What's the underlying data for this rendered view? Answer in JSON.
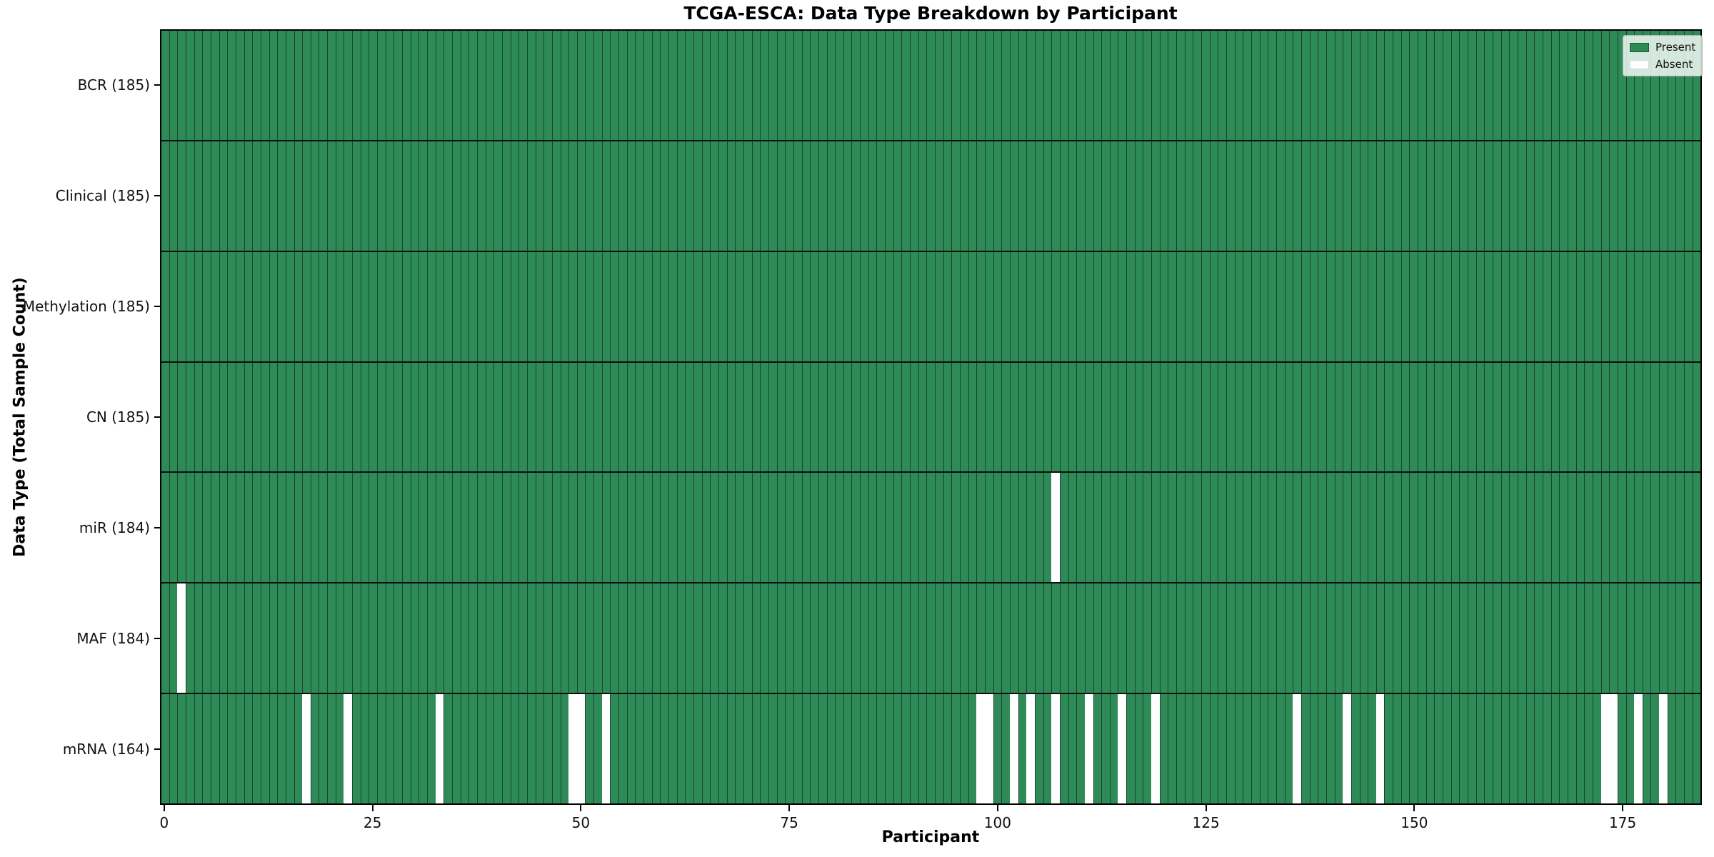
{
  "figure": {
    "title": "TCGA-ESCA: Data Type Breakdown by Participant",
    "xlabel": "Participant",
    "ylabel": "Data Type (Total Sample Count)"
  },
  "legend": {
    "position": "upper right",
    "items": [
      {
        "label": "Present",
        "color": "#2e8b57"
      },
      {
        "label": "Absent",
        "color": "#ffffff"
      }
    ]
  },
  "colors": {
    "present": "#2e8b57",
    "absent": "#ffffff",
    "bar_edge": "rgba(0,0,0,0.5)",
    "row_separator": "#0d0d0d",
    "spine": "#000000",
    "background": "#ffffff"
  },
  "chart_data": {
    "type": "heatmap",
    "title": "TCGA-ESCA: Data Type Breakdown by Participant",
    "xlabel": "Participant",
    "ylabel": "Data Type (Total Sample Count)",
    "legend": [
      "Present",
      "Absent"
    ],
    "legend_position": "upper right",
    "grid": false,
    "n_participants": 185,
    "x_range": [
      0,
      184
    ],
    "x_ticks": [
      0,
      25,
      50,
      75,
      100,
      125,
      150,
      175
    ],
    "cell_encoding": {
      "present": "green cell",
      "absent": "white cell"
    },
    "rows": [
      {
        "label": "BCR (185)",
        "data_type": "BCR",
        "present_count": 185,
        "absent_participants": []
      },
      {
        "label": "Clinical (185)",
        "data_type": "Clinical",
        "present_count": 185,
        "absent_participants": []
      },
      {
        "label": "Methylation (185)",
        "data_type": "Methylation",
        "present_count": 185,
        "absent_participants": []
      },
      {
        "label": "CN (185)",
        "data_type": "CN",
        "present_count": 185,
        "absent_participants": []
      },
      {
        "label": "miR (184)",
        "data_type": "miR",
        "present_count": 184,
        "absent_participants": [
          107
        ]
      },
      {
        "label": "MAF (184)",
        "data_type": "MAF",
        "present_count": 184,
        "absent_participants": [
          2
        ]
      },
      {
        "label": "mRNA (164)",
        "data_type": "mRNA",
        "present_count": 164,
        "absent_participants": [
          17,
          22,
          33,
          49,
          50,
          53,
          98,
          99,
          102,
          104,
          107,
          111,
          115,
          119,
          136,
          142,
          146,
          173,
          174,
          177,
          180
        ]
      }
    ]
  }
}
